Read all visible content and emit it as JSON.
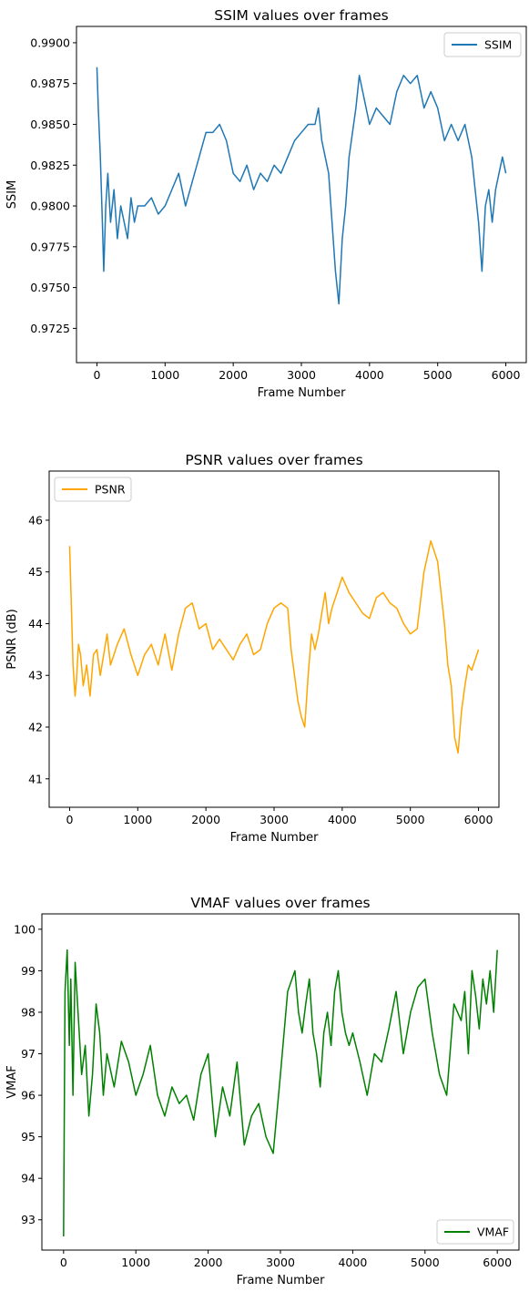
{
  "chart_data": [
    {
      "type": "line",
      "title": "SSIM values over frames",
      "xlabel": "Frame Number",
      "ylabel": "SSIM",
      "xlim": [
        -300,
        6300
      ],
      "ylim": [
        0.9704,
        0.991
      ],
      "xticks": [
        0,
        1000,
        2000,
        3000,
        4000,
        5000,
        6000
      ],
      "xtick_labels": [
        "0",
        "1000",
        "2000",
        "3000",
        "4000",
        "5000",
        "6000"
      ],
      "yticks": [
        0.9725,
        0.975,
        0.9775,
        0.98,
        0.9825,
        0.985,
        0.9875,
        0.99
      ],
      "ytick_labels": [
        "0.9725",
        "0.9750",
        "0.9775",
        "0.9800",
        "0.9825",
        "0.9850",
        "0.9875",
        "0.9900"
      ],
      "grid": false,
      "legend_position": "top-right",
      "series": [
        {
          "name": "SSIM",
          "color": "#1f77b4",
          "x": [
            0,
            20,
            50,
            80,
            100,
            130,
            160,
            200,
            250,
            300,
            350,
            400,
            450,
            500,
            550,
            600,
            700,
            800,
            900,
            1000,
            1100,
            1200,
            1300,
            1400,
            1500,
            1600,
            1700,
            1800,
            1900,
            2000,
            2100,
            2200,
            2300,
            2400,
            2500,
            2600,
            2700,
            2800,
            2900,
            3000,
            3100,
            3200,
            3250,
            3300,
            3350,
            3400,
            3450,
            3500,
            3550,
            3600,
            3650,
            3700,
            3750,
            3800,
            3850,
            3900,
            3950,
            4000,
            4100,
            4200,
            4300,
            4400,
            4500,
            4600,
            4700,
            4800,
            4900,
            5000,
            5100,
            5200,
            5300,
            5400,
            5500,
            5550,
            5600,
            5650,
            5700,
            5750,
            5800,
            5850,
            5900,
            5950,
            6000
          ],
          "values": [
            0.9885,
            0.986,
            0.983,
            0.979,
            0.976,
            0.98,
            0.982,
            0.979,
            0.981,
            0.978,
            0.98,
            0.979,
            0.978,
            0.9805,
            0.979,
            0.98,
            0.98,
            0.9805,
            0.9795,
            0.98,
            0.981,
            0.982,
            0.98,
            0.9815,
            0.983,
            0.9845,
            0.9845,
            0.985,
            0.984,
            0.982,
            0.9815,
            0.9825,
            0.981,
            0.982,
            0.9815,
            0.9825,
            0.982,
            0.983,
            0.984,
            0.9845,
            0.985,
            0.985,
            0.986,
            0.984,
            0.983,
            0.982,
            0.979,
            0.976,
            0.974,
            0.978,
            0.98,
            0.983,
            0.9845,
            0.986,
            0.988,
            0.987,
            0.986,
            0.985,
            0.986,
            0.9855,
            0.985,
            0.987,
            0.988,
            0.9875,
            0.988,
            0.986,
            0.987,
            0.986,
            0.984,
            0.985,
            0.984,
            0.985,
            0.983,
            0.981,
            0.979,
            0.976,
            0.98,
            0.981,
            0.979,
            0.981,
            0.982,
            0.983,
            0.982
          ]
        }
      ]
    },
    {
      "type": "line",
      "title": "PSNR values over frames",
      "xlabel": "Frame Number",
      "ylabel": "PSNR (dB)",
      "xlim": [
        -300,
        6300
      ],
      "ylim": [
        40.45,
        46.95
      ],
      "xticks": [
        0,
        1000,
        2000,
        3000,
        4000,
        5000,
        6000
      ],
      "xtick_labels": [
        "0",
        "1000",
        "2000",
        "3000",
        "4000",
        "5000",
        "6000"
      ],
      "yticks": [
        41,
        42,
        43,
        44,
        45,
        46
      ],
      "ytick_labels": [
        "41",
        "42",
        "43",
        "44",
        "45",
        "46"
      ],
      "grid": false,
      "legend_position": "top-left",
      "series": [
        {
          "name": "PSNR",
          "color": "#ffa500",
          "x": [
            0,
            20,
            50,
            80,
            100,
            130,
            160,
            200,
            250,
            300,
            350,
            400,
            450,
            500,
            550,
            600,
            700,
            800,
            900,
            1000,
            1100,
            1200,
            1300,
            1400,
            1500,
            1600,
            1700,
            1800,
            1900,
            2000,
            2100,
            2200,
            2300,
            2400,
            2500,
            2600,
            2700,
            2800,
            2900,
            3000,
            3100,
            3200,
            3250,
            3300,
            3350,
            3400,
            3450,
            3500,
            3550,
            3600,
            3650,
            3700,
            3750,
            3800,
            3850,
            3900,
            3950,
            4000,
            4100,
            4200,
            4300,
            4400,
            4500,
            4600,
            4700,
            4800,
            4900,
            5000,
            5100,
            5200,
            5300,
            5400,
            5500,
            5550,
            5600,
            5650,
            5700,
            5750,
            5800,
            5850,
            5900,
            5950,
            6000
          ],
          "values": [
            45.5,
            44.6,
            43.2,
            42.6,
            42.9,
            43.6,
            43.4,
            42.8,
            43.2,
            42.6,
            43.4,
            43.5,
            43.0,
            43.4,
            43.8,
            43.2,
            43.6,
            43.9,
            43.4,
            43.0,
            43.4,
            43.6,
            43.2,
            43.8,
            43.1,
            43.8,
            44.3,
            44.4,
            43.9,
            44.0,
            43.5,
            43.7,
            43.5,
            43.3,
            43.6,
            43.8,
            43.4,
            43.5,
            44.0,
            44.3,
            44.4,
            44.3,
            43.5,
            43.0,
            42.5,
            42.2,
            42.0,
            43.0,
            43.8,
            43.5,
            43.8,
            44.2,
            44.6,
            44.0,
            44.3,
            44.5,
            44.7,
            44.9,
            44.6,
            44.4,
            44.2,
            44.1,
            44.5,
            44.6,
            44.4,
            44.3,
            44.0,
            43.8,
            43.9,
            45.0,
            45.6,
            45.2,
            44.0,
            43.2,
            42.8,
            41.8,
            41.5,
            42.3,
            42.8,
            43.2,
            43.1,
            43.3,
            43.5
          ]
        }
      ]
    },
    {
      "type": "line",
      "title": "VMAF values over frames",
      "xlabel": "Frame Number",
      "ylabel": "VMAF",
      "xlim": [
        -300,
        6300
      ],
      "ylim": [
        92.27,
        100.37
      ],
      "xticks": [
        0,
        1000,
        2000,
        3000,
        4000,
        5000,
        6000
      ],
      "xtick_labels": [
        "0",
        "1000",
        "2000",
        "3000",
        "4000",
        "5000",
        "6000"
      ],
      "yticks": [
        93,
        94,
        95,
        96,
        97,
        98,
        99,
        100
      ],
      "ytick_labels": [
        "93",
        "94",
        "95",
        "96",
        "97",
        "98",
        "99",
        "100"
      ],
      "grid": false,
      "legend_position": "bottom-right",
      "series": [
        {
          "name": "VMAF",
          "color": "#008000",
          "x": [
            0,
            20,
            50,
            80,
            100,
            130,
            160,
            200,
            250,
            300,
            350,
            400,
            450,
            500,
            550,
            600,
            700,
            800,
            900,
            1000,
            1100,
            1200,
            1300,
            1400,
            1500,
            1600,
            1700,
            1800,
            1900,
            2000,
            2100,
            2200,
            2300,
            2400,
            2500,
            2600,
            2700,
            2800,
            2900,
            3000,
            3100,
            3200,
            3250,
            3300,
            3350,
            3400,
            3450,
            3500,
            3550,
            3600,
            3650,
            3700,
            3750,
            3800,
            3850,
            3900,
            3950,
            4000,
            4100,
            4200,
            4300,
            4400,
            4500,
            4600,
            4700,
            4800,
            4900,
            5000,
            5100,
            5200,
            5300,
            5400,
            5500,
            5550,
            5600,
            5650,
            5700,
            5750,
            5800,
            5850,
            5900,
            5950,
            6000
          ],
          "values": [
            92.6,
            98.5,
            99.5,
            97.2,
            98.8,
            96.0,
            99.2,
            98.0,
            96.5,
            97.2,
            95.5,
            96.5,
            98.2,
            97.5,
            96.0,
            97.0,
            96.2,
            97.3,
            96.8,
            96.0,
            96.5,
            97.2,
            96.0,
            95.5,
            96.2,
            95.8,
            96.0,
            95.4,
            96.5,
            97.0,
            95.0,
            96.2,
            95.5,
            96.8,
            94.8,
            95.5,
            95.8,
            95.0,
            94.6,
            96.5,
            98.5,
            99.0,
            98.0,
            97.5,
            98.2,
            98.8,
            97.5,
            97.0,
            96.2,
            97.5,
            98.0,
            97.2,
            98.5,
            99.0,
            98.0,
            97.5,
            97.2,
            97.5,
            96.8,
            96.0,
            97.0,
            96.8,
            97.6,
            98.5,
            97.0,
            98.0,
            98.6,
            98.8,
            97.5,
            96.5,
            96.0,
            98.2,
            97.8,
            98.5,
            97.0,
            99.0,
            98.4,
            97.6,
            98.8,
            98.2,
            99.0,
            98.0,
            99.5
          ]
        }
      ]
    }
  ]
}
